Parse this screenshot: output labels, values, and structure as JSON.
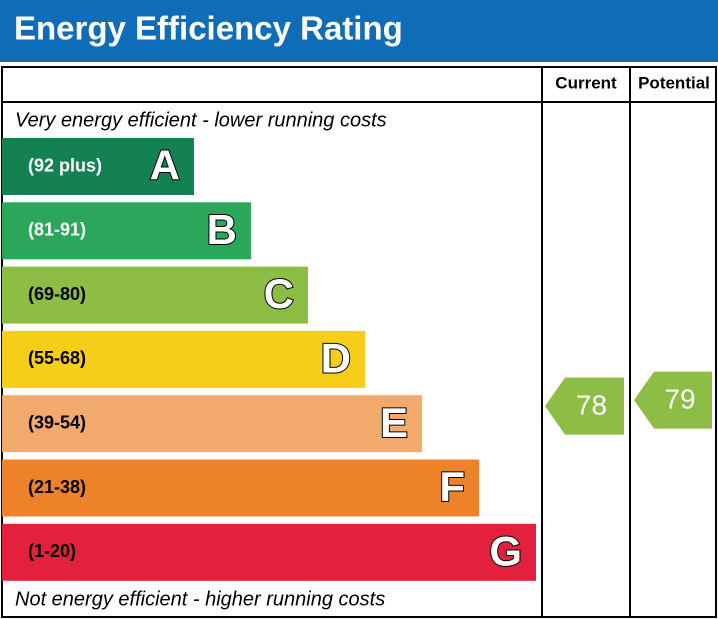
{
  "title": "Energy Efficiency Rating",
  "headers": {
    "current": "Current",
    "potential": "Potential"
  },
  "top_note": "Very energy efficient - lower running costs",
  "bottom_note": "Not energy efficient - higher running costs",
  "bands": [
    {
      "range": "(92 plus)",
      "letter": "A",
      "color": "#148153",
      "text_color": "#ffffff"
    },
    {
      "range": "(81-91)",
      "letter": "B",
      "color": "#2ba75c",
      "text_color": "#ffffff"
    },
    {
      "range": "(69-80)",
      "letter": "C",
      "color": "#8dbd45",
      "text_color": "#000000"
    },
    {
      "range": "(55-68)",
      "letter": "D",
      "color": "#f6cd18",
      "text_color": "#000000"
    },
    {
      "range": "(39-54)",
      "letter": "E",
      "color": "#f1aa6b",
      "text_color": "#000000"
    },
    {
      "range": "(21-38)",
      "letter": "F",
      "color": "#ee8228",
      "text_color": "#000000"
    },
    {
      "range": "(1-20)",
      "letter": "G",
      "color": "#e3213d",
      "text_color": "#000000"
    }
  ],
  "current": {
    "value": 78,
    "band": 2
  },
  "potential": {
    "value": 79,
    "band": 2
  }
}
